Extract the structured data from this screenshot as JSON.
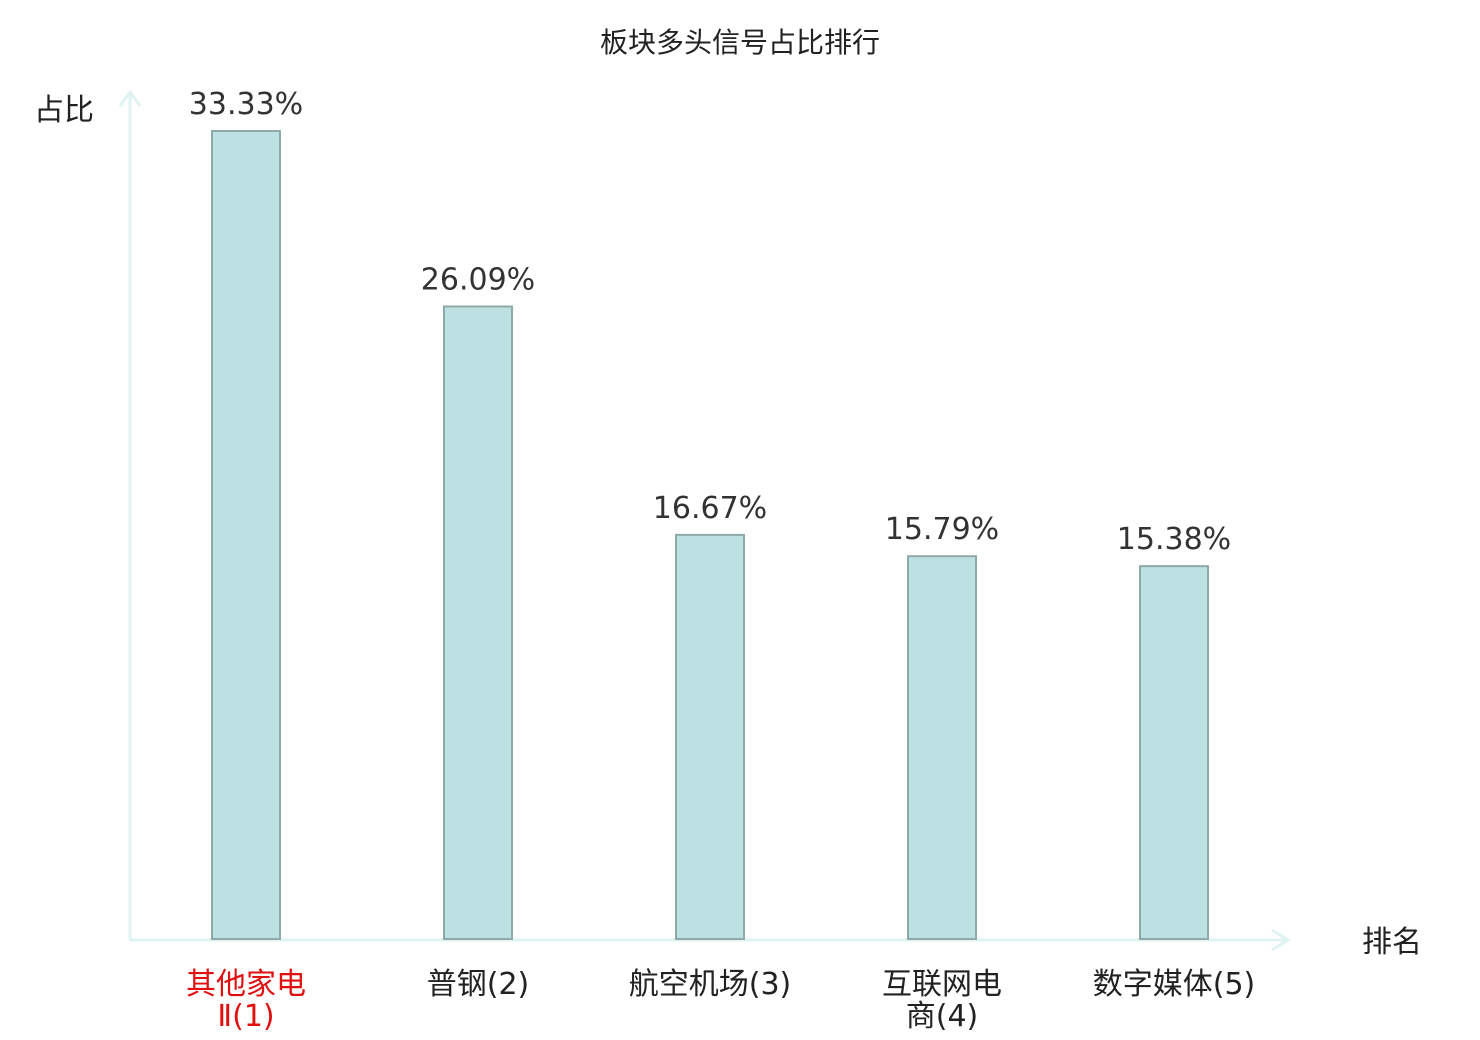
{
  "chart_data": {
    "type": "bar",
    "title": "板块多头信号占比排行",
    "xlabel": "排名",
    "ylabel": "占比",
    "categories": [
      [
        "其他家电",
        "Ⅱ(1)"
      ],
      [
        "普钢(2)"
      ],
      [
        "航空机场(3)"
      ],
      [
        "互联网电",
        "商(4)"
      ],
      [
        "数字媒体(5)"
      ]
    ],
    "values": [
      33.33,
      26.09,
      16.67,
      15.79,
      15.38
    ],
    "value_labels": [
      "33.33%",
      "26.09%",
      "16.67%",
      "15.79%",
      "15.38%"
    ],
    "highlight_index": 0,
    "ylim": [
      0,
      33.33
    ],
    "grid": false,
    "colors": {
      "bar_fill": "#bde1e2",
      "bar_stroke": "#8fa9a9",
      "axis": "#e0f3f1",
      "highlight_text": "#e01010",
      "text": "#222222",
      "value_text": "#333333"
    }
  }
}
